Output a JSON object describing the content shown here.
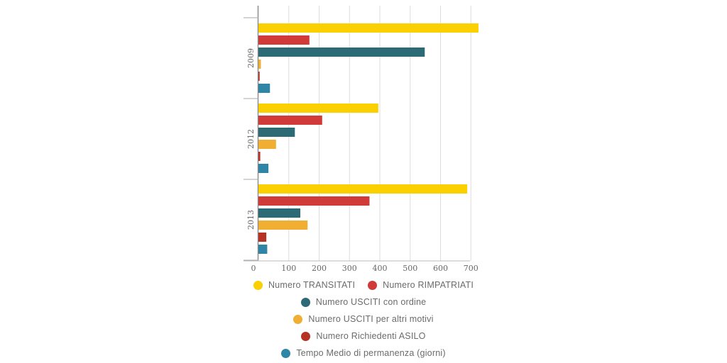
{
  "chart_data": {
    "type": "bar",
    "orientation": "horizontal",
    "categories": [
      "2009",
      "2012",
      "2013"
    ],
    "series": [
      {
        "name": "Numero TRANSITATI",
        "color": "#fbd000",
        "values": [
          725,
          395,
          688
        ]
      },
      {
        "name": "Numero RIMPATRIATI",
        "color": "#d03a38",
        "values": [
          168,
          210,
          366
        ]
      },
      {
        "name": "Numero USCITI con ordine",
        "color": "#2c6b76",
        "values": [
          548,
          120,
          138
        ]
      },
      {
        "name": "Numero USCITI per altri motivi",
        "color": "#f0ae33",
        "values": [
          8,
          58,
          162
        ]
      },
      {
        "name": "Numero Richiedenti ASILO",
        "color": "#b53224",
        "values": [
          4,
          6,
          26
        ]
      },
      {
        "name": "Tempo Medio di permanenza (giorni)",
        "color": "#2f85a5",
        "values": [
          38,
          33,
          29
        ]
      }
    ],
    "xlim": [
      0,
      700
    ],
    "xticks": [
      "0",
      "100",
      "200",
      "300",
      "400",
      "500",
      "600",
      "700"
    ],
    "grid": "vertical",
    "legend_position": "bottom"
  },
  "legend_rows": [
    [
      0,
      1
    ],
    [
      2
    ],
    [
      3
    ],
    [
      4
    ],
    [
      5
    ]
  ]
}
